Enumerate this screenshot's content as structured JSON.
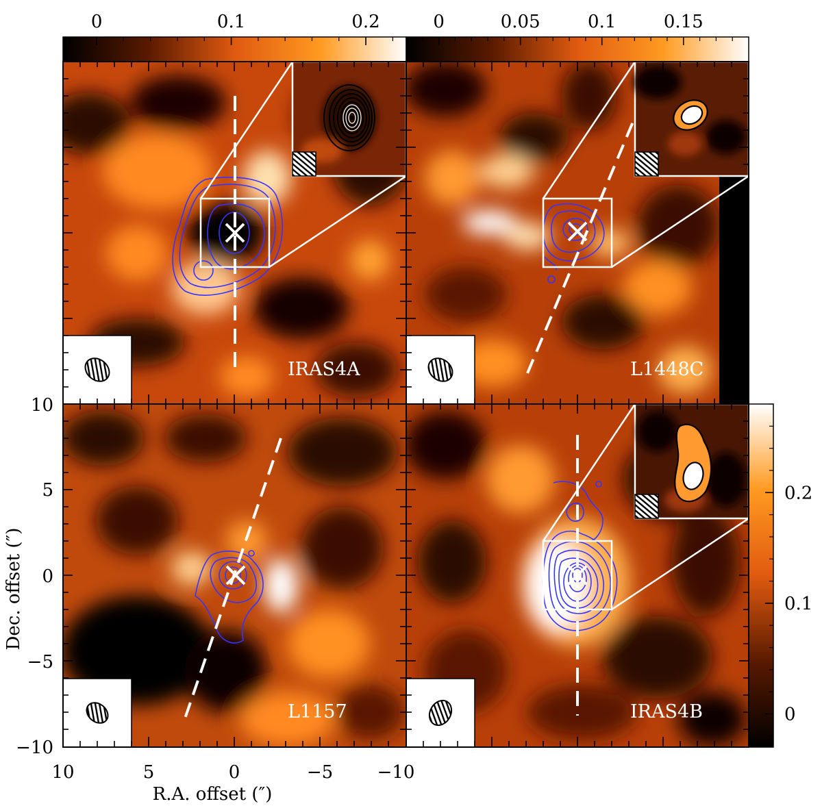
{
  "figure": {
    "xlabel": "R.A. offset (″)",
    "ylabel": "Dec. offset (″)",
    "x_ticks": [
      "10",
      "5",
      "0",
      "−5",
      "−10"
    ],
    "y_ticks": [
      "10",
      "5",
      "0",
      "−5",
      "−10"
    ]
  },
  "colorbars": [
    {
      "id": "top-left",
      "orientation": "horizontal",
      "ticks": [
        "0",
        "0.1",
        "0.2"
      ],
      "tick_values": [
        0,
        0.1,
        0.2
      ],
      "range": [
        -0.025,
        0.23
      ]
    },
    {
      "id": "top-right",
      "orientation": "horizontal",
      "ticks": [
        "0",
        "0.05",
        "0.1",
        "0.15"
      ],
      "tick_values": [
        0,
        0.05,
        0.1,
        0.15
      ],
      "range": [
        -0.02,
        0.19
      ]
    },
    {
      "id": "right",
      "orientation": "vertical",
      "ticks": [
        "0",
        "0.1",
        "0.2"
      ],
      "tick_values": [
        0,
        0.1,
        0.2
      ],
      "range": [
        -0.03,
        0.28
      ]
    }
  ],
  "colors": {
    "colormap_low": "#000000",
    "colormap_mid": "#e06010",
    "colormap_high": "#ffffff",
    "contours": "#3030ff",
    "outflow_axis": "#ffffff"
  },
  "chart_data": [
    {
      "type": "heatmap",
      "source": "IRAS4A",
      "position": "top-left",
      "xlim": [
        10,
        -10
      ],
      "ylim": [
        -10,
        10
      ],
      "outflow_pa_deg": 0,
      "inset": true
    },
    {
      "type": "heatmap",
      "source": "L1448C",
      "position": "top-right",
      "xlim": [
        10,
        -10
      ],
      "ylim": [
        -10,
        10
      ],
      "outflow_pa_deg": -17,
      "inset": true
    },
    {
      "type": "heatmap",
      "source": "L1157",
      "position": "bottom-left",
      "xlim": [
        10,
        -10
      ],
      "ylim": [
        -10,
        10
      ],
      "outflow_pa_deg": -20,
      "inset": false
    },
    {
      "type": "heatmap",
      "source": "IRAS4B",
      "position": "bottom-right",
      "xlim": [
        10,
        -10
      ],
      "ylim": [
        -10,
        10
      ],
      "outflow_pa_deg": 0,
      "inset": true
    }
  ]
}
